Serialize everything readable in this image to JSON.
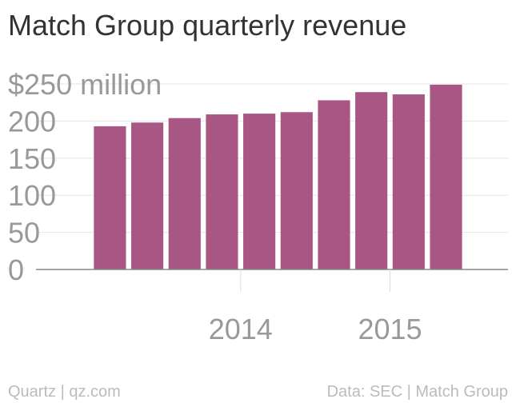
{
  "chart_data": {
    "type": "bar",
    "title": "Match Group quarterly revenue",
    "x": [
      2013.125,
      2013.375,
      2013.625,
      2013.875,
      2014.125,
      2014.375,
      2014.625,
      2014.875,
      2015.125,
      2015.375
    ],
    "values": [
      193,
      198,
      204,
      209,
      210,
      212,
      228,
      239,
      236,
      249
    ],
    "color": "#a85784",
    "xlim": [
      2012.63,
      2015.79
    ],
    "xticks": [
      2014,
      2015
    ],
    "ylim": [
      0,
      250
    ],
    "yticks": [
      0,
      50,
      100,
      150,
      200,
      {
        "value": 250,
        "label": "$250 million"
      }
    ],
    "grid": true,
    "source_left": "Quartz | qz.com",
    "source_right": "Data: SEC | Match Group"
  }
}
